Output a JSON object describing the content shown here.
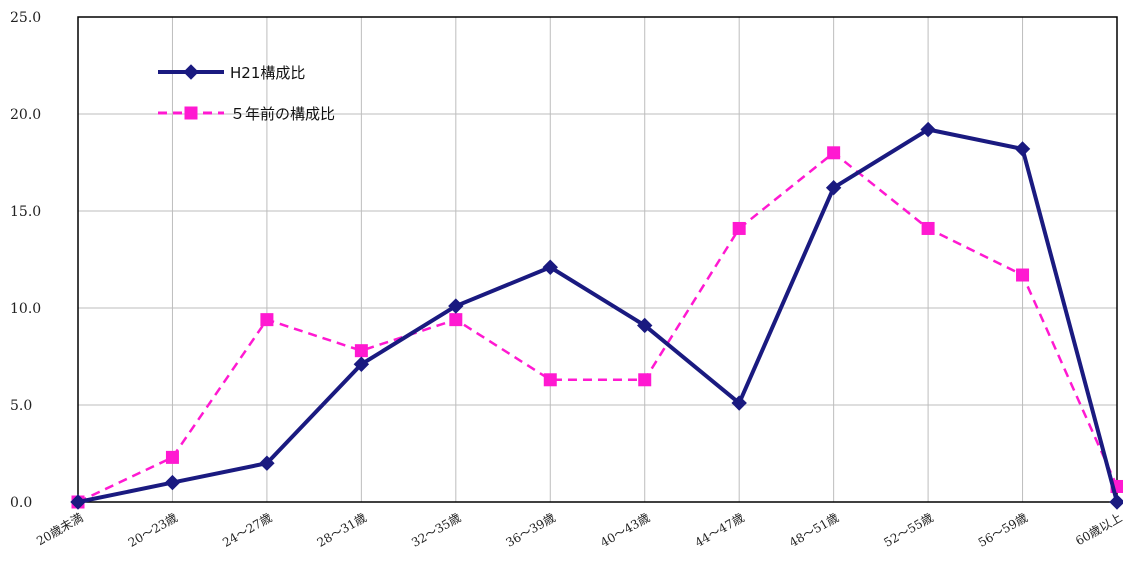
{
  "chart_data": {
    "type": "line",
    "title": "",
    "xlabel": "",
    "ylabel": "",
    "ylim": [
      0,
      25
    ],
    "yticks": [
      0,
      5,
      10,
      15,
      20,
      25
    ],
    "ytick_labels": [
      "0.0",
      "5.0",
      "10.0",
      "15.0",
      "20.0",
      "25.0"
    ],
    "grid": true,
    "legend_position": "top-left",
    "categories": [
      "20歳未満",
      "20～23歳",
      "24～27歳",
      "28～31歳",
      "32～35歳",
      "36～39歳",
      "40～43歳",
      "44～47歳",
      "48～51歳",
      "52～55歳",
      "56～59歳",
      "60歳以上"
    ],
    "series": [
      {
        "name": "H21構成比",
        "color": "#1a1a80",
        "style": "solid",
        "marker": "diamond",
        "values": [
          0.0,
          1.0,
          2.0,
          7.1,
          10.1,
          12.1,
          9.1,
          5.1,
          16.2,
          19.2,
          18.2,
          0.0
        ]
      },
      {
        "name": "５年前の構成比",
        "color": "#ff19d1",
        "style": "dashed",
        "marker": "square",
        "values": [
          0.0,
          2.3,
          9.4,
          7.8,
          9.4,
          6.3,
          6.3,
          14.1,
          18.0,
          14.1,
          11.7,
          0.8
        ]
      }
    ]
  }
}
